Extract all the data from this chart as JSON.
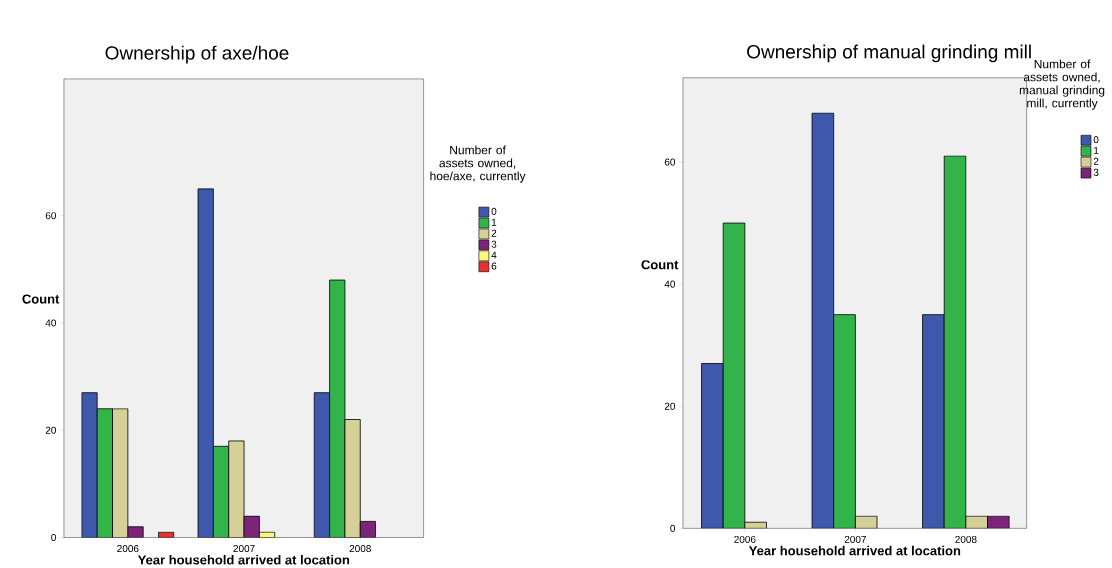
{
  "chart_data": [
    {
      "type": "bar",
      "title": "Ownership of axe/hoe",
      "xlabel": "Year household arrived at location",
      "ylabel": "Count",
      "legend_title": "Number of assets owned, hoe/axe, currently",
      "legend": "right",
      "categories": [
        "2006",
        "2007",
        "2008"
      ],
      "ylim": [
        0,
        85.5
      ],
      "yticks": [
        0,
        20,
        40,
        60
      ],
      "series": [
        {
          "name": "0",
          "color": "#3e58ac",
          "values": [
            27,
            65,
            27
          ]
        },
        {
          "name": "1",
          "color": "#33b44a",
          "values": [
            24,
            17,
            48
          ]
        },
        {
          "name": "2",
          "color": "#d5cf98",
          "values": [
            24,
            18,
            22
          ]
        },
        {
          "name": "3",
          "color": "#7b2479",
          "values": [
            2,
            4,
            3
          ]
        },
        {
          "name": "4",
          "color": "#fcf87c",
          "values": [
            null,
            1,
            null
          ]
        },
        {
          "name": "6",
          "color": "#e8322f",
          "values": [
            1,
            null,
            null
          ]
        }
      ]
    },
    {
      "type": "bar",
      "title": "Ownership of manual grinding mill",
      "xlabel": "Year household arrived at location",
      "ylabel": "Count",
      "legend_title": "Number of assets owned, manual grinding mill, currently",
      "legend": "right",
      "categories": [
        "2006",
        "2007",
        "2008"
      ],
      "ylim": [
        0,
        73.8
      ],
      "yticks": [
        0,
        20,
        40,
        60
      ],
      "series": [
        {
          "name": "0",
          "color": "#3e58ac",
          "values": [
            27,
            68,
            35
          ]
        },
        {
          "name": "1",
          "color": "#33b44a",
          "values": [
            50,
            35,
            61
          ]
        },
        {
          "name": "2",
          "color": "#d5cf98",
          "values": [
            1,
            2,
            2
          ]
        },
        {
          "name": "3",
          "color": "#7b2479",
          "values": [
            null,
            null,
            2
          ]
        }
      ]
    }
  ]
}
